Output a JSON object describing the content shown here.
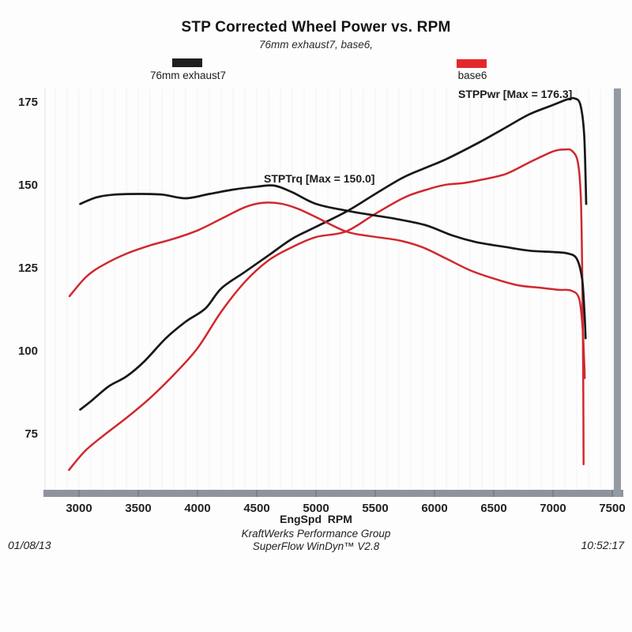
{
  "header": {
    "title": "STP Corrected Wheel Power vs. RPM",
    "subtitle": "76mm exhaust7, base6,"
  },
  "legend": [
    {
      "label": "76mm exhaust7",
      "color": "#1f1f1d"
    },
    {
      "label": "base6",
      "color": "#e3282c"
    }
  ],
  "annotations": {
    "power_max": "STPPwr [Max = 176.3]",
    "torque_max": "STPTrq [Max = 150.0]"
  },
  "footer": {
    "date": "01/08/13",
    "time": "10:52:17",
    "line1": "KraftWerks Performance Group",
    "line2": "SuperFlow WinDyn™ V2.8"
  },
  "chart_data": {
    "type": "line",
    "title": "STP Corrected Wheel Power vs. RPM",
    "subtitle": "76mm exhaust7, base6,",
    "xlabel": "EngSpd  RPM",
    "ylabel": "",
    "x_ticks": [
      3000,
      3500,
      4000,
      4500,
      5000,
      5500,
      6000,
      6500,
      7000,
      7500
    ],
    "y_ticks": [
      75,
      100,
      125,
      150,
      175
    ],
    "xlim": [
      2700,
      7515
    ],
    "ylim": [
      58,
      180
    ],
    "grid": "faint vertical lines every 100 RPM",
    "legend_position": "top",
    "axis_style": "thick gray bar along bottom and right edges",
    "series": [
      {
        "name": "STPPwr — 76mm exhaust7",
        "color": "#181818",
        "max_label": 176.3,
        "points": [
          [
            3010,
            82.5
          ],
          [
            3100,
            85
          ],
          [
            3250,
            89.5
          ],
          [
            3400,
            92.5
          ],
          [
            3550,
            97
          ],
          [
            3733,
            104
          ],
          [
            3900,
            109
          ],
          [
            4067,
            113
          ],
          [
            4200,
            119
          ],
          [
            4400,
            124
          ],
          [
            4600,
            129
          ],
          [
            4800,
            134
          ],
          [
            5000,
            137.6
          ],
          [
            5267,
            142.4
          ],
          [
            5500,
            147.5
          ],
          [
            5733,
            152.4
          ],
          [
            5933,
            155.5
          ],
          [
            6100,
            158
          ],
          [
            6380,
            163.1
          ],
          [
            6600,
            167.5
          ],
          [
            6800,
            171.5
          ],
          [
            7000,
            174.3
          ],
          [
            7120,
            176.0
          ],
          [
            7180,
            176.3
          ],
          [
            7230,
            174.5
          ],
          [
            7262,
            166
          ],
          [
            7275,
            152
          ],
          [
            7280,
            144.5
          ]
        ]
      },
      {
        "name": "STPPwr — base6",
        "color": "#d0282e",
        "max_label": 160.9,
        "points": [
          [
            2915,
            64.3
          ],
          [
            3050,
            70
          ],
          [
            3200,
            74.5
          ],
          [
            3400,
            80
          ],
          [
            3600,
            86
          ],
          [
            3800,
            93
          ],
          [
            4000,
            101
          ],
          [
            4200,
            112
          ],
          [
            4400,
            121
          ],
          [
            4600,
            127.5
          ],
          [
            4800,
            131.5
          ],
          [
            5000,
            134.5
          ],
          [
            5253,
            136.2
          ],
          [
            5500,
            141.5
          ],
          [
            5750,
            146.5
          ],
          [
            5953,
            149
          ],
          [
            6100,
            150.3
          ],
          [
            6250,
            150.8
          ],
          [
            6400,
            151.8
          ],
          [
            6600,
            153.5
          ],
          [
            6800,
            157
          ],
          [
            7000,
            160.3
          ],
          [
            7100,
            160.9
          ],
          [
            7160,
            160.5
          ],
          [
            7210,
            157
          ],
          [
            7235,
            146
          ],
          [
            7248,
            120
          ],
          [
            7255,
            90
          ],
          [
            7258,
            66
          ]
        ]
      },
      {
        "name": "STPTrq — 76mm exhaust7",
        "color": "#181818",
        "max_label": 150.0,
        "points": [
          [
            3010,
            144.5
          ],
          [
            3150,
            146.5
          ],
          [
            3300,
            147.3
          ],
          [
            3500,
            147.5
          ],
          [
            3700,
            147.3
          ],
          [
            3900,
            146.2
          ],
          [
            4100,
            147.5
          ],
          [
            4300,
            148.8
          ],
          [
            4500,
            149.7
          ],
          [
            4650,
            150.0
          ],
          [
            4800,
            148
          ],
          [
            5000,
            144.5
          ],
          [
            5267,
            142.4
          ],
          [
            5500,
            141
          ],
          [
            5700,
            139.8
          ],
          [
            5933,
            138
          ],
          [
            6150,
            135
          ],
          [
            6350,
            133
          ],
          [
            6600,
            131.5
          ],
          [
            6800,
            130.4
          ],
          [
            7000,
            130.0
          ],
          [
            7120,
            129.6
          ],
          [
            7200,
            128
          ],
          [
            7245,
            122
          ],
          [
            7265,
            112
          ],
          [
            7275,
            104
          ]
        ]
      },
      {
        "name": "STPTrq — base6",
        "color": "#d0282e",
        "max_label": 144.8,
        "points": [
          [
            2920,
            116.7
          ],
          [
            3060,
            122.5
          ],
          [
            3200,
            126
          ],
          [
            3400,
            129.5
          ],
          [
            3600,
            132
          ],
          [
            3800,
            134
          ],
          [
            4000,
            136.5
          ],
          [
            4200,
            140
          ],
          [
            4400,
            143.5
          ],
          [
            4550,
            144.8
          ],
          [
            4700,
            144.6
          ],
          [
            4850,
            143
          ],
          [
            5000,
            140.5
          ],
          [
            5253,
            136.2
          ],
          [
            5450,
            134.8
          ],
          [
            5700,
            133.5
          ],
          [
            5900,
            131.4
          ],
          [
            6100,
            128
          ],
          [
            6300,
            124.5
          ],
          [
            6500,
            122
          ],
          [
            6700,
            120
          ],
          [
            6900,
            119.2
          ],
          [
            7050,
            118.6
          ],
          [
            7150,
            118.4
          ],
          [
            7220,
            116
          ],
          [
            7250,
            107
          ],
          [
            7262,
            98
          ],
          [
            7268,
            92
          ]
        ]
      }
    ]
  }
}
